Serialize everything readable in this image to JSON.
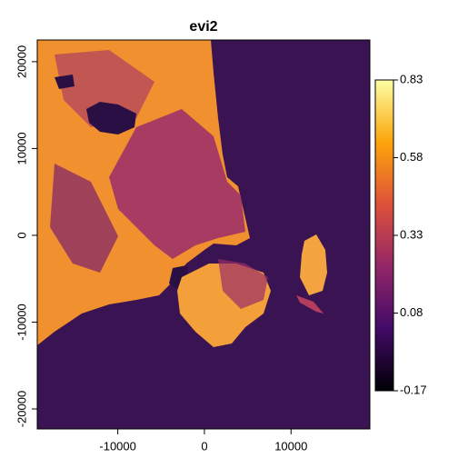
{
  "chart_data": {
    "type": "raster",
    "title": "evi2",
    "xlim": [
      -19300,
      19100
    ],
    "ylim": [
      -22300,
      22500
    ],
    "xticks": [
      -10000,
      0,
      10000
    ],
    "yticks": [
      -20000,
      -10000,
      0,
      10000,
      20000
    ],
    "colorbar": {
      "lim": [
        -0.17,
        0.83
      ],
      "ticks": [
        -0.17,
        0.08,
        0.33,
        0.58,
        0.83
      ],
      "colors": [
        "#000004",
        "#420a68",
        "#932667",
        "#dd513a",
        "#fca50a",
        "#fcffa4"
      ]
    }
  }
}
